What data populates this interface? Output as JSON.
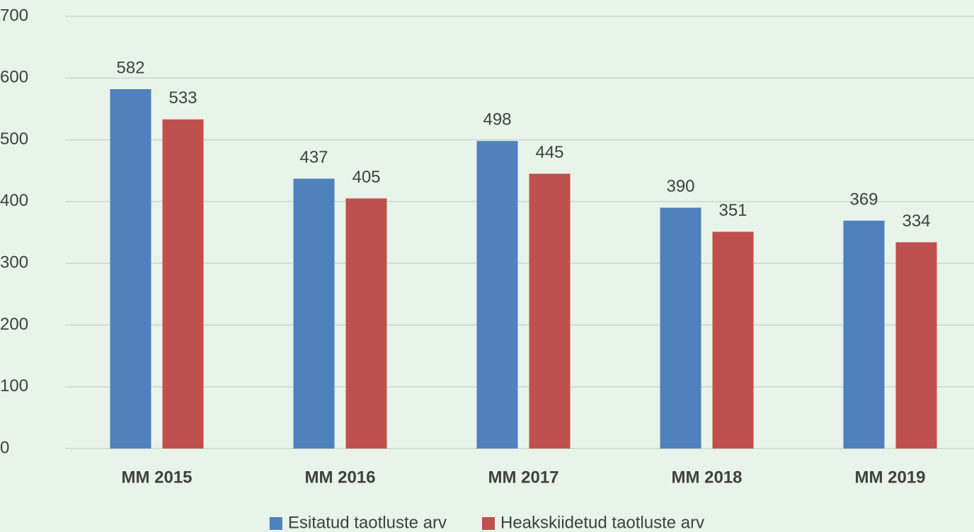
{
  "chart_data": {
    "type": "bar",
    "categories": [
      "MM 2015",
      "MM 2016",
      "MM 2017",
      "MM 2018",
      "MM 2019"
    ],
    "series": [
      {
        "name": "Esitatud taotluste arv",
        "color": "#4f81bd",
        "values": [
          582,
          437,
          498,
          390,
          369
        ]
      },
      {
        "name": "Heakskiidetud taotluste arv",
        "color": "#c0504d",
        "values": [
          533,
          405,
          445,
          351,
          334
        ]
      }
    ],
    "ylim": [
      0,
      700
    ],
    "yticks": [
      0,
      100,
      200,
      300,
      400,
      500,
      600,
      700
    ],
    "grid": true,
    "legend": "bottom"
  }
}
